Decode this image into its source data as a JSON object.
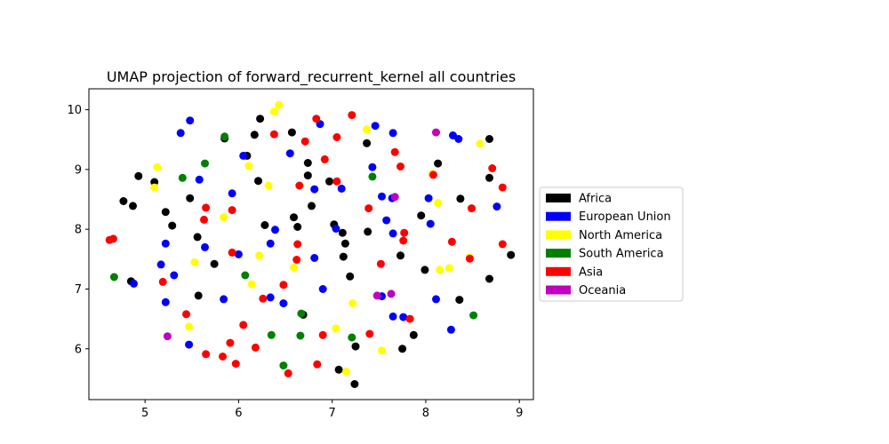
{
  "chart_data": {
    "type": "scatter",
    "title": "UMAP projection of forward_recurrent_kernel all countries",
    "xlabel": "",
    "ylabel": "",
    "xlim": [
      4.4,
      9.15
    ],
    "ylim": [
      5.15,
      10.35
    ],
    "xticks": [
      5,
      6,
      7,
      8,
      9
    ],
    "yticks": [
      6,
      7,
      8,
      9,
      10
    ],
    "grid": false,
    "legend_position": "right-center",
    "series": [
      {
        "name": "Africa",
        "color": "#000000",
        "points": [
          [
            6.23,
            9.85
          ],
          [
            6.57,
            9.62
          ],
          [
            5.85,
            9.52
          ],
          [
            6.17,
            9.58
          ],
          [
            8.68,
            9.51
          ],
          [
            7.37,
            9.44
          ],
          [
            6.74,
            9.11
          ],
          [
            8.13,
            9.1
          ],
          [
            6.09,
            9.23
          ],
          [
            4.93,
            8.89
          ],
          [
            5.1,
            8.79
          ],
          [
            6.21,
            8.81
          ],
          [
            6.74,
            8.9
          ],
          [
            6.97,
            8.8
          ],
          [
            8.68,
            8.86
          ],
          [
            4.77,
            8.47
          ],
          [
            4.87,
            8.39
          ],
          [
            5.48,
            8.52
          ],
          [
            8.37,
            8.51
          ],
          [
            5.22,
            8.29
          ],
          [
            6.78,
            8.39
          ],
          [
            7.95,
            8.23
          ],
          [
            5.29,
            8.06
          ],
          [
            6.28,
            8.07
          ],
          [
            6.59,
            8.2
          ],
          [
            6.63,
            8.04
          ],
          [
            7.02,
            8.08
          ],
          [
            7.38,
            7.96
          ],
          [
            7.11,
            7.94
          ],
          [
            5.56,
            7.87
          ],
          [
            7.14,
            7.76
          ],
          [
            5.74,
            7.42
          ],
          [
            7.12,
            7.54
          ],
          [
            7.73,
            7.56
          ],
          [
            8.91,
            7.57
          ],
          [
            7.99,
            7.32
          ],
          [
            7.19,
            7.21
          ],
          [
            8.68,
            7.17
          ],
          [
            4.85,
            7.13
          ],
          [
            5.57,
            6.89
          ],
          [
            8.36,
            6.82
          ],
          [
            6.69,
            6.57
          ],
          [
            7.87,
            6.23
          ],
          [
            7.25,
            6.04
          ],
          [
            7.75,
            6.0
          ],
          [
            7.07,
            5.65
          ],
          [
            7.24,
            5.41
          ]
        ]
      },
      {
        "name": "European Union",
        "color": "#0000ff",
        "points": [
          [
            5.48,
            9.82
          ],
          [
            6.87,
            9.76
          ],
          [
            7.46,
            9.73
          ],
          [
            5.38,
            9.61
          ],
          [
            7.65,
            9.61
          ],
          [
            8.29,
            9.57
          ],
          [
            8.35,
            9.51
          ],
          [
            6.55,
            9.27
          ],
          [
            6.05,
            9.23
          ],
          [
            7.43,
            9.04
          ],
          [
            5.58,
            8.83
          ],
          [
            6.81,
            8.67
          ],
          [
            7.1,
            8.68
          ],
          [
            5.93,
            8.6
          ],
          [
            7.53,
            8.55
          ],
          [
            7.64,
            8.52
          ],
          [
            8.03,
            8.52
          ],
          [
            7.58,
            8.15
          ],
          [
            8.05,
            8.09
          ],
          [
            6.39,
            7.99
          ],
          [
            7.04,
            8.01
          ],
          [
            7.65,
            7.93
          ],
          [
            5.22,
            7.76
          ],
          [
            5.64,
            7.7
          ],
          [
            6.34,
            7.76
          ],
          [
            6.0,
            7.58
          ],
          [
            6.81,
            7.52
          ],
          [
            5.17,
            7.41
          ],
          [
            5.31,
            7.23
          ],
          [
            4.88,
            7.09
          ],
          [
            6.9,
            7.0
          ],
          [
            5.84,
            6.83
          ],
          [
            6.34,
            6.86
          ],
          [
            8.11,
            6.83
          ],
          [
            5.22,
            6.78
          ],
          [
            6.48,
            6.76
          ],
          [
            7.65,
            6.54
          ],
          [
            7.76,
            6.53
          ],
          [
            8.27,
            6.32
          ],
          [
            5.47,
            6.07
          ],
          [
            8.76,
            8.38
          ],
          [
            7.53,
            6.88
          ]
        ]
      },
      {
        "name": "North America",
        "color": "#ffff00",
        "points": [
          [
            6.43,
            10.08
          ],
          [
            6.38,
            9.97
          ],
          [
            8.58,
            9.43
          ],
          [
            7.37,
            9.67
          ],
          [
            5.13,
            9.04
          ],
          [
            6.11,
            9.06
          ],
          [
            5.1,
            8.7
          ],
          [
            6.32,
            8.73
          ],
          [
            8.13,
            8.44
          ],
          [
            5.84,
            8.2
          ],
          [
            6.22,
            7.56
          ],
          [
            5.53,
            7.45
          ],
          [
            6.59,
            7.36
          ],
          [
            8.15,
            7.32
          ],
          [
            8.25,
            7.35
          ],
          [
            8.47,
            7.53
          ],
          [
            6.14,
            7.08
          ],
          [
            7.22,
            6.76
          ],
          [
            5.47,
            6.37
          ],
          [
            7.04,
            6.34
          ],
          [
            7.53,
            5.97
          ],
          [
            7.15,
            5.62
          ],
          [
            8.07,
            8.93
          ]
        ]
      },
      {
        "name": "South America",
        "color": "#008000",
        "points": [
          [
            5.85,
            9.55
          ],
          [
            5.64,
            9.1
          ],
          [
            5.4,
            8.86
          ],
          [
            7.43,
            8.88
          ],
          [
            4.67,
            7.2
          ],
          [
            6.07,
            7.23
          ],
          [
            6.67,
            6.59
          ],
          [
            8.51,
            6.56
          ],
          [
            6.35,
            6.23
          ],
          [
            6.66,
            6.22
          ],
          [
            7.21,
            6.19
          ],
          [
            6.48,
            5.72
          ]
        ]
      },
      {
        "name": "Asia",
        "color": "#ff0000",
        "points": [
          [
            6.83,
            9.85
          ],
          [
            7.21,
            9.91
          ],
          [
            6.38,
            9.59
          ],
          [
            6.71,
            9.47
          ],
          [
            7.05,
            9.54
          ],
          [
            7.67,
            9.29
          ],
          [
            6.92,
            9.17
          ],
          [
            7.73,
            9.05
          ],
          [
            8.71,
            9.02
          ],
          [
            8.08,
            8.91
          ],
          [
            7.05,
            8.8
          ],
          [
            6.65,
            8.73
          ],
          [
            8.82,
            8.7
          ],
          [
            5.65,
            8.36
          ],
          [
            5.93,
            8.32
          ],
          [
            7.39,
            8.35
          ],
          [
            8.49,
            8.35
          ],
          [
            5.63,
            8.16
          ],
          [
            7.77,
            7.94
          ],
          [
            7.76,
            7.81
          ],
          [
            8.28,
            7.79
          ],
          [
            8.82,
            7.75
          ],
          [
            4.62,
            7.82
          ],
          [
            4.66,
            7.84
          ],
          [
            6.63,
            7.75
          ],
          [
            5.93,
            7.61
          ],
          [
            6.62,
            7.49
          ],
          [
            7.52,
            7.42
          ],
          [
            8.47,
            7.51
          ],
          [
            5.19,
            7.12
          ],
          [
            6.48,
            7.07
          ],
          [
            6.26,
            6.84
          ],
          [
            5.44,
            6.58
          ],
          [
            7.83,
            6.5
          ],
          [
            6.05,
            6.4
          ],
          [
            6.9,
            6.23
          ],
          [
            7.4,
            6.25
          ],
          [
            5.91,
            6.1
          ],
          [
            5.65,
            5.91
          ],
          [
            5.83,
            5.87
          ],
          [
            5.97,
            5.75
          ],
          [
            6.18,
            6.02
          ],
          [
            6.84,
            5.74
          ],
          [
            6.53,
            5.59
          ]
        ]
      },
      {
        "name": "Oceania",
        "color": "#bf00bf",
        "points": [
          [
            8.11,
            9.62
          ],
          [
            7.67,
            8.54
          ],
          [
            7.48,
            6.89
          ],
          [
            7.63,
            6.92
          ],
          [
            5.24,
            6.21
          ]
        ]
      }
    ]
  }
}
